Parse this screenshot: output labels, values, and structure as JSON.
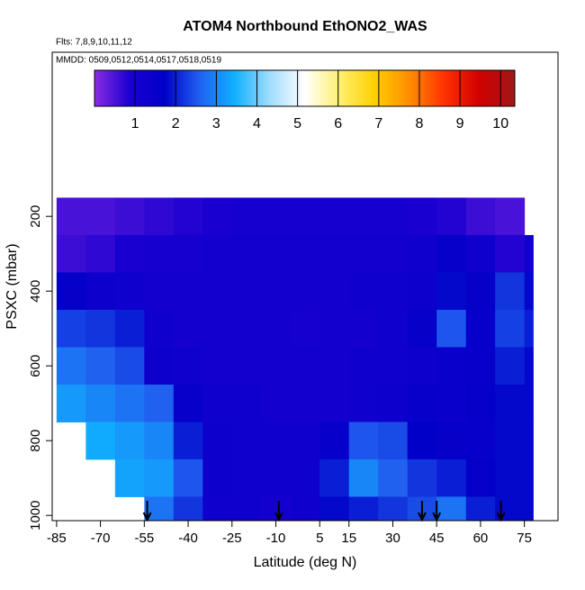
{
  "chart_data": {
    "type": "heatmap",
    "title": "ATOM4 Northbound EthONO2_WAS",
    "annotations": [
      "Flts: 7,8,9,10,11,12",
      "MMDD: 0509,0512,0514,0517,0518,0519"
    ],
    "x_label": "Latitude (deg N)",
    "y_label": "PSXC (mbar)",
    "xlim": [
      -86.5,
      86.5
    ],
    "xticks": [
      -85,
      -70,
      -55,
      -40,
      -25,
      -10,
      5,
      15,
      30,
      45,
      60,
      75
    ],
    "ylim": [
      1014,
      -239
    ],
    "yticks": [
      200,
      400,
      600,
      800,
      1000
    ],
    "x_bins": [
      -85,
      -75,
      -65,
      -55,
      -45,
      -35,
      -25,
      -15,
      -5,
      5,
      15,
      25,
      35,
      45,
      55,
      65,
      75,
      78
    ],
    "y_bins": [
      150,
      250,
      350,
      450,
      550,
      650,
      750,
      850,
      950,
      1014
    ],
    "values": [
      [
        0.5,
        0.5,
        0.6,
        0.7,
        0.8,
        0.9,
        1.0,
        1.0,
        1.0,
        1.0,
        1.0,
        1.0,
        0.9,
        0.8,
        0.6,
        0.5,
        null
      ],
      [
        0.6,
        0.7,
        0.9,
        1.0,
        1.0,
        1.1,
        1.1,
        1.1,
        1.1,
        1.1,
        1.1,
        1.1,
        1.2,
        1.5,
        1.2,
        0.8,
        1.2
      ],
      [
        1.6,
        1.3,
        1.2,
        1.1,
        1.1,
        1.1,
        1.1,
        1.1,
        1.1,
        1.1,
        1.2,
        1.2,
        1.3,
        1.8,
        1.6,
        2.2,
        1.8
      ],
      [
        2.3,
        2.2,
        2.0,
        1.2,
        1.1,
        1.1,
        1.1,
        1.1,
        1.0,
        1.1,
        1.1,
        1.2,
        1.6,
        2.5,
        1.5,
        2.3,
        2.0
      ],
      [
        2.8,
        2.6,
        2.4,
        1.3,
        1.2,
        1.1,
        1.1,
        1.1,
        1.1,
        1.1,
        1.2,
        1.2,
        1.3,
        1.4,
        1.5,
        2.0,
        1.8
      ],
      [
        3.2,
        3.0,
        2.8,
        2.6,
        1.5,
        1.2,
        1.2,
        1.1,
        1.1,
        1.1,
        1.2,
        1.3,
        1.5,
        1.4,
        1.6,
        1.8,
        1.8
      ],
      [
        null,
        3.4,
        3.2,
        3.0,
        2.0,
        1.3,
        1.2,
        1.2,
        1.2,
        1.5,
        2.5,
        2.4,
        1.7,
        1.6,
        1.5,
        1.8,
        1.8
      ],
      [
        null,
        null,
        3.3,
        3.2,
        2.5,
        1.3,
        1.2,
        1.2,
        1.2,
        2.0,
        3.0,
        2.6,
        2.2,
        2.0,
        1.6,
        1.8,
        1.8
      ],
      [
        null,
        null,
        null,
        2.8,
        2.2,
        1.2,
        1.2,
        1.1,
        1.2,
        1.8,
        2.0,
        2.2,
        2.4,
        2.8,
        2.0,
        1.8,
        1.8
      ]
    ],
    "clim": [
      0,
      10.35
    ],
    "cticks": [
      1,
      2,
      3,
      4,
      5,
      6,
      7,
      8,
      9,
      10
    ],
    "colors": [
      "#8a2be2",
      "#1a00d0",
      "#0000c8",
      "#2060f0",
      "#10b0ff",
      "#a0dcff",
      "#ffffff",
      "#fff070",
      "#ffd000",
      "#ff8c00",
      "#ff3000",
      "#d00000",
      "#a01818"
    ],
    "arrows": [
      -54,
      -9,
      40,
      45,
      67
    ]
  }
}
